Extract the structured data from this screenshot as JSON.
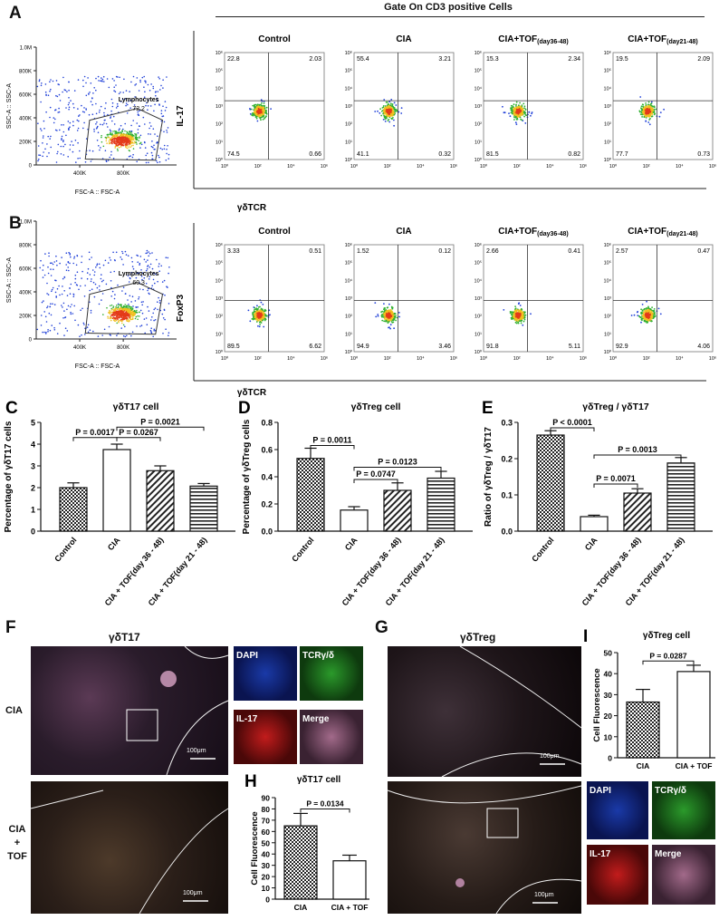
{
  "panels": {
    "A": {
      "letter": "A",
      "gate_title": "Gate On CD3 positive Cells",
      "fsc_x": "FSC-A :: FSC-A",
      "fsc_y": "SSC-A :: SSC-A",
      "gate_label": "Lymphocytes",
      "gate_value": "72.2",
      "y_marker": "IL-17",
      "x_marker": "γδTCR",
      "plots": [
        {
          "title": "Control",
          "sub": "",
          "q": [
            "22.8",
            "2.03",
            "74.5",
            "0.66"
          ]
        },
        {
          "title": "CIA",
          "sub": "",
          "q": [
            "55.4",
            "3.21",
            "41.1",
            "0.32"
          ]
        },
        {
          "title": "CIA+TOF",
          "sub": "(day36-48)",
          "q": [
            "15.3",
            "2.34",
            "81.5",
            "0.82"
          ]
        },
        {
          "title": "CIA+TOF",
          "sub": "(day21-48)",
          "q": [
            "19.5",
            "2.09",
            "77.7",
            "0.73"
          ]
        }
      ]
    },
    "B": {
      "letter": "B",
      "fsc_x": "FSC-A :: FSC-A",
      "fsc_y": "SSC-A :: SSC-A",
      "gate_label": "Lymphocytes",
      "gate_value": "60.3",
      "y_marker": "FoxP3",
      "x_marker": "γδTCR",
      "plots": [
        {
          "title": "Control",
          "sub": "",
          "q": [
            "3.33",
            "0.51",
            "89.5",
            "6.62"
          ]
        },
        {
          "title": "CIA",
          "sub": "",
          "q": [
            "1.52",
            "0.12",
            "94.9",
            "3.46"
          ]
        },
        {
          "title": "CIA+TOF",
          "sub": "(day36-48)",
          "q": [
            "2.66",
            "0.41",
            "91.8",
            "5.11"
          ]
        },
        {
          "title": "CIA+TOF",
          "sub": "(day21-48)",
          "q": [
            "2.57",
            "0.47",
            "92.9",
            "4.06"
          ]
        }
      ]
    },
    "F": {
      "letter": "F",
      "title": "γδT17",
      "row1": "CIA",
      "row2": [
        "CIA",
        "+",
        "TOF"
      ],
      "tiles": [
        "DAPI",
        "TCRγ/δ",
        "IL-17",
        "Merge"
      ],
      "scale": "100μm"
    },
    "G": {
      "letter": "G",
      "title": "γδTreg",
      "tiles": [
        "DAPI",
        "TCRγ/δ",
        "IL-17",
        "Merge"
      ],
      "scale": "100μm"
    }
  },
  "axis_ticks": {
    "flow_y": [
      "10⁰",
      "10¹",
      "10²",
      "10³",
      "10⁴",
      "10⁵",
      "10⁶"
    ],
    "flow_x": [
      "10⁰",
      "10²",
      "10⁴",
      "10⁶"
    ],
    "fsc_y": [
      "1.0M",
      "800K",
      "600K",
      "400K",
      "200K",
      "0"
    ],
    "fsc_x": [
      "400K",
      "800K"
    ]
  },
  "chart_data": [
    {
      "letter": "C",
      "type": "bar",
      "title": "γδT17 cell",
      "ylabel": "Percentage of γδT17 cells",
      "categories": [
        "Control",
        "CIA",
        "CIA + TOF(day 36 - 48)",
        "CIA + TOF(day 21 - 48)"
      ],
      "values": [
        2.0,
        3.75,
        2.78,
        2.07
      ],
      "errors": [
        0.22,
        0.25,
        0.22,
        0.12
      ],
      "patterns": [
        "checker",
        "white",
        "diag",
        "horiz"
      ],
      "ylim": [
        0,
        5
      ],
      "yticks": [
        0,
        1,
        2,
        3,
        4,
        5
      ],
      "annotations": [
        {
          "text": "P = 0.0017",
          "from": 0,
          "to": 1,
          "level": 4.3
        },
        {
          "text": "P = 0.0267",
          "from": 1,
          "to": 2,
          "level": 4.3
        },
        {
          "text": "P = 0.0021",
          "from": 1,
          "to": 3,
          "level": 4.78
        }
      ]
    },
    {
      "letter": "D",
      "type": "bar",
      "title": "γδTreg cell",
      "ylabel": "Percentage of γδTreg cells",
      "categories": [
        "Control",
        "CIA",
        "CIA + TOF(day 36 - 48)",
        "CIA + TOF(day 21 - 48)"
      ],
      "values": [
        0.535,
        0.155,
        0.3,
        0.39
      ],
      "errors": [
        0.075,
        0.025,
        0.055,
        0.05
      ],
      "patterns": [
        "checker",
        "white",
        "diag",
        "horiz"
      ],
      "ylim": [
        0,
        0.8
      ],
      "yticks": [
        0.0,
        0.2,
        0.4,
        0.6,
        0.8
      ],
      "annotations": [
        {
          "text": "P = 0.0011",
          "from": 0,
          "to": 1,
          "level": 0.63
        },
        {
          "text": "P = 0.0747",
          "from": 1,
          "to": 2,
          "level": 0.38
        },
        {
          "text": "P = 0.0123",
          "from": 1,
          "to": 3,
          "level": 0.47
        }
      ]
    },
    {
      "letter": "E",
      "type": "bar",
      "title": "γδTreg / γδT17",
      "ylabel": "Ratio of γδTreg / γδT17",
      "categories": [
        "Control",
        "CIA",
        "CIA + TOF(day 36 - 48)",
        "CIA + TOF(day 21 - 48)"
      ],
      "values": [
        0.265,
        0.04,
        0.105,
        0.188
      ],
      "errors": [
        0.012,
        0.004,
        0.012,
        0.015
      ],
      "patterns": [
        "checker",
        "white",
        "diag",
        "horiz"
      ],
      "ylim": [
        0,
        0.3
      ],
      "yticks": [
        0.0,
        0.1,
        0.2,
        0.3
      ],
      "annotations": [
        {
          "text": "P < 0.0001",
          "from": 0,
          "to": 1,
          "level": 0.285
        },
        {
          "text": "P = 0.0071",
          "from": 1,
          "to": 2,
          "level": 0.13
        },
        {
          "text": "P = 0.0013",
          "from": 1,
          "to": 3,
          "level": 0.21
        }
      ]
    },
    {
      "letter": "H",
      "type": "bar",
      "title": "γδT17 cell",
      "ylabel": "Cell Fluorescence",
      "categories": [
        "CIA",
        "CIA + TOF"
      ],
      "values": [
        65,
        34
      ],
      "errors": [
        11,
        5
      ],
      "patterns": [
        "checker",
        "white"
      ],
      "ylim": [
        0,
        90
      ],
      "yticks": [
        0,
        10,
        20,
        30,
        40,
        50,
        60,
        70,
        80,
        90
      ],
      "annotations": [
        {
          "text": "P = 0.0134",
          "from": 0,
          "to": 1,
          "level": 80
        }
      ]
    },
    {
      "letter": "I",
      "type": "bar",
      "title": "γδTreg cell",
      "ylabel": "Cell Fluorescence",
      "categories": [
        "CIA",
        "CIA + TOF"
      ],
      "values": [
        26.5,
        41
      ],
      "errors": [
        6,
        3
      ],
      "patterns": [
        "checker",
        "white"
      ],
      "ylim": [
        0,
        50
      ],
      "yticks": [
        0,
        10,
        20,
        30,
        40,
        50
      ],
      "annotations": [
        {
          "text": "P = 0.0287",
          "from": 0,
          "to": 1,
          "level": 46
        }
      ]
    }
  ]
}
